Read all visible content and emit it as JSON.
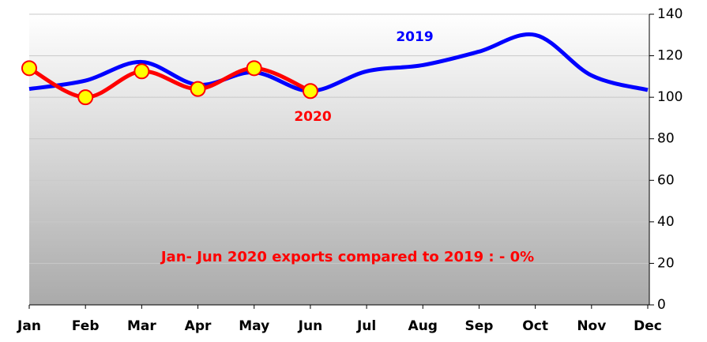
{
  "chart_data": {
    "type": "line",
    "categories": [
      "Jan",
      "Feb",
      "Mar",
      "Apr",
      "May",
      "Jun",
      "Jul",
      "Aug",
      "Sep",
      "Oct",
      "Nov",
      "Dec"
    ],
    "series": [
      {
        "name": "2019",
        "color": "#0000ff",
        "values": [
          104,
          108,
          117,
          106,
          112,
          103,
          112.5,
          115.5,
          122,
          130,
          110.5,
          103.5
        ]
      },
      {
        "name": "2020",
        "color": "#ff0000",
        "values": [
          114,
          100,
          112.5,
          104,
          114,
          103,
          null,
          null,
          null,
          null,
          null,
          null
        ]
      }
    ],
    "annotation": "Jan- Jun 2020 exports compared to 2019 : - 0%",
    "ylim": [
      0,
      140
    ],
    "yticks": [
      0,
      20,
      40,
      60,
      80,
      100,
      120,
      140
    ],
    "grid": true,
    "y_axis_side": "right"
  }
}
